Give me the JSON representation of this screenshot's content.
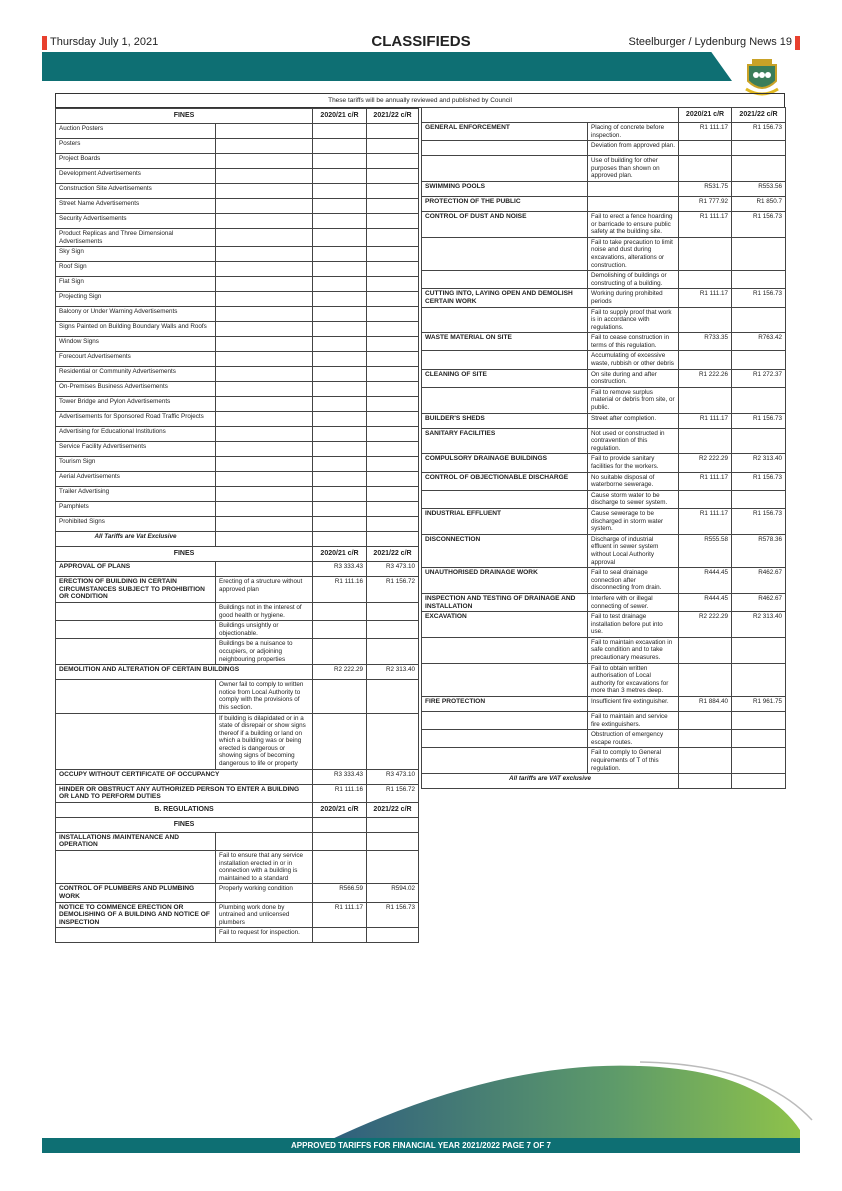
{
  "header": {
    "date": "Thursday July 1, 2021",
    "section": "CLASSIFIEDS",
    "publication": "Steelburger / Lydenburg News 19",
    "accent": "#e8402e",
    "band_color": "#0e6f73"
  },
  "note": "These tariffs will be annually reviewed and published by Council",
  "left_table": {
    "rows": [
      {
        "type": "header",
        "cells": [
          "FINES",
          "2020/21 c/R",
          "2021/22 c/R"
        ]
      },
      {
        "cells": [
          "Auction Posters",
          "",
          "",
          ""
        ]
      },
      {
        "cells": [
          "Posters",
          "",
          "",
          ""
        ]
      },
      {
        "cells": [
          "Project Boards",
          "",
          "",
          ""
        ]
      },
      {
        "cells": [
          "Development Advertisements",
          "",
          "",
          ""
        ]
      },
      {
        "cells": [
          "Construction Site Advertisements",
          "",
          "",
          ""
        ]
      },
      {
        "cells": [
          "Street Name Advertisements",
          "",
          "",
          ""
        ]
      },
      {
        "cells": [
          "Security Advertisements",
          "",
          "",
          ""
        ]
      },
      {
        "cells": [
          "Product Replicas and Three Dimensional Advertisements",
          "",
          "",
          ""
        ]
      },
      {
        "cells": [
          "Sky Sign",
          "",
          "",
          ""
        ]
      },
      {
        "cells": [
          "Roof Sign",
          "",
          "",
          ""
        ]
      },
      {
        "cells": [
          "Flat Sign",
          "",
          "",
          ""
        ]
      },
      {
        "cells": [
          "Projecting Sign",
          "",
          "",
          ""
        ]
      },
      {
        "cells": [
          "Balcony or Under Warning Advertisements",
          "",
          "",
          ""
        ]
      },
      {
        "cells": [
          "Signs Painted on Building Boundary Walls and Roofs",
          "",
          "",
          ""
        ]
      },
      {
        "cells": [
          "Window Signs",
          "",
          "",
          ""
        ]
      },
      {
        "cells": [
          "Forecourt Advertisements",
          "",
          "",
          ""
        ]
      },
      {
        "cells": [
          "Residential or Community Advertisements",
          "",
          "",
          ""
        ]
      },
      {
        "cells": [
          "On-Premises Business Advertisements",
          "",
          "",
          ""
        ]
      },
      {
        "cells": [
          "Tower Bridge and Pylon Advertisements",
          "",
          "",
          ""
        ]
      },
      {
        "cells": [
          "Advertisements for Sponsored Road Traffic Projects",
          "",
          "",
          ""
        ]
      },
      {
        "cells": [
          "Advertising for Educational Institutions",
          "",
          "",
          ""
        ]
      },
      {
        "cells": [
          "Service Facility Advertisements",
          "",
          "",
          ""
        ]
      },
      {
        "cells": [
          "Tourism Sign",
          "",
          "",
          ""
        ]
      },
      {
        "cells": [
          "Aerial Advertisements",
          "",
          "",
          ""
        ]
      },
      {
        "cells": [
          "Trailer Advertising",
          "",
          "",
          ""
        ]
      },
      {
        "cells": [
          "Pamphlets",
          "",
          "",
          ""
        ]
      },
      {
        "cells": [
          "Prohibited Signs",
          "",
          "",
          ""
        ]
      },
      {
        "type": "italic",
        "cells": [
          "All Tariffs are Vat Exclusive",
          "",
          "",
          ""
        ]
      },
      {
        "type": "header",
        "cells": [
          "FINES",
          "2020/21 c/R",
          "2021/22 c/R"
        ]
      },
      {
        "bold": true,
        "cells": [
          "APPROVAL OF PLANS",
          "",
          "R3 333.43",
          "R3 473.10"
        ]
      },
      {
        "bold": true,
        "cells": [
          "ERECTION OF BUILDING IN CERTAIN CIRCUMSTANCES SUBJECT TO PROHIBITION OR CONDITION",
          "Erecting of a structure without approved plan",
          "R1 111.16",
          "R1 156.72"
        ]
      },
      {
        "cells": [
          "",
          "Buildings not in the interest of good health or hygiene.",
          "",
          ""
        ]
      },
      {
        "cells": [
          "",
          "Buildings unsightly or objectionable.",
          "",
          ""
        ]
      },
      {
        "cells": [
          "",
          "Buildings be a nuisance to occupiers, or adjoining neighbouring properties",
          "",
          ""
        ]
      },
      {
        "type": "span",
        "bold": true,
        "cells": [
          "DEMOLITION AND ALTERATION OF CERTAIN BUILDINGS",
          "R2 222.29",
          "R2 313.40"
        ]
      },
      {
        "cells": [
          "",
          "Owner fail to comply to written notice from Local Authority to comply with the provisions of this section.",
          "",
          ""
        ]
      },
      {
        "cells": [
          "",
          "If building is dilapidated or in a state of disrepair or show signs thereof if a building or land on which a building was or being erected is dangerous or showing signs of becoming dangerous to life or property",
          "",
          ""
        ]
      },
      {
        "type": "span",
        "bold": true,
        "cells": [
          "OCCUPY WITHOUT CERTIFICATE OF OCCUPANCY",
          "R3 333.43",
          "R3 473.10"
        ]
      },
      {
        "type": "span",
        "bold": true,
        "cells": [
          "HINDER OR OBSTRUCT ANY AUTHORIZED PERSON TO ENTER A BUILDING OR LAND TO PERFORM DUTIES",
          "R1 111.16",
          "R1 156.72"
        ]
      },
      {
        "type": "header",
        "cells": [
          "B. REGULATIONS",
          "2020/21 c/R",
          "2021/22 c/R"
        ]
      },
      {
        "type": "header",
        "cells": [
          "FINES",
          "",
          ""
        ]
      },
      {
        "bold": true,
        "cells": [
          "INSTALLATIONS /MAINTENANCE AND OPERATION",
          "",
          "",
          ""
        ]
      },
      {
        "cells": [
          "",
          "Fail to ensure that any service installation erected in or in connection with a building is maintained to a standard",
          "",
          ""
        ]
      },
      {
        "bold": true,
        "cells": [
          "CONTROL OF PLUMBERS AND PLUMBING WORK",
          "Properly working condition",
          "R566.59",
          "R594.02"
        ]
      },
      {
        "bold": true,
        "cells": [
          "NOTICE TO COMMENCE ERECTION OR DEMOLISHING OF A BUILDING AND NOTICE OF INSPECTION",
          "Plumbing work done by untrained and unlicensed plumbers",
          "R1 111.17",
          "R1 156.73"
        ]
      },
      {
        "cells": [
          "",
          "Fail to request for inspection.",
          "",
          ""
        ]
      }
    ]
  },
  "right_table": {
    "rows": [
      {
        "type": "header",
        "cells": [
          "",
          "2020/21 c/R",
          "2021/22 c/R"
        ]
      },
      {
        "bold": true,
        "cells": [
          "GENERAL ENFORCEMENT",
          "Placing of concrete before inspection.",
          "R1 111.17",
          "R1 156.73"
        ]
      },
      {
        "cells": [
          "",
          "Deviation from approved plan.",
          "",
          ""
        ]
      },
      {
        "cells": [
          "",
          "Use of building for other purposes than shown on approved plan.",
          "",
          ""
        ]
      },
      {
        "bold": true,
        "cells": [
          "SWIMMING POOLS",
          "",
          "R531.75",
          "R553.56"
        ]
      },
      {
        "bold": true,
        "cells": [
          "PROTECTION OF THE PUBLIC",
          "",
          "R1 777.92",
          "R1 850.7"
        ]
      },
      {
        "bold": true,
        "cells": [
          "CONTROL OF DUST AND NOISE",
          "Fail to erect a fence hoarding or barricade to ensure public safety at the building site.",
          "R1 111.17",
          "R1 156.73"
        ]
      },
      {
        "cells": [
          "",
          "Fail to take precaution to limit noise and dust during excavations, alterations or construction.",
          "",
          ""
        ]
      },
      {
        "cells": [
          "",
          "Demolishing of buildings or constructing of a building.",
          "",
          ""
        ]
      },
      {
        "bold": true,
        "cells": [
          "CUTTING INTO, LAYING OPEN AND DEMOLISH CERTAIN WORK",
          "Working during prohibited periods",
          "R1 111.17",
          "R1 156.73"
        ]
      },
      {
        "cells": [
          "",
          "Fail to supply proof that work is in accordance with regulations.",
          "",
          ""
        ]
      },
      {
        "bold": true,
        "cells": [
          "WASTE MATERIAL ON SITE",
          "Fail to cease construction in terms of this regulation.",
          "R733.35",
          "R763.42"
        ]
      },
      {
        "cells": [
          "",
          "Accumulating of excessive waste, rubbish or other debris",
          "",
          ""
        ]
      },
      {
        "bold": true,
        "cells": [
          "CLEANING OF SITE",
          "On site during and after construction.",
          "R1 222.26",
          "R1 272.37"
        ]
      },
      {
        "cells": [
          "",
          "Fail to remove surplus material or debris from site, or public.",
          "",
          ""
        ]
      },
      {
        "bold": true,
        "cells": [
          "BUILDER'S SHEDS",
          "Street after completion.",
          "R1 111.17",
          "R1 156.73"
        ]
      },
      {
        "bold": true,
        "cells": [
          "SANITARY FACILITIES",
          "Not used or constructed in contravention of this regulation.",
          "",
          ""
        ]
      },
      {
        "bold": true,
        "cells": [
          "COMPULSORY DRAINAGE BUILDINGS",
          "Fail to provide sanitary facilities for the workers.",
          "R2 222.29",
          "R2 313.40"
        ]
      },
      {
        "bold": true,
        "cells": [
          "CONTROL OF OBJECTIONABLE DISCHARGE",
          "No suitable disposal of waterborne sewerage.",
          "R1 111.17",
          "R1 156.73"
        ]
      },
      {
        "cells": [
          "",
          "Cause storm water to be discharge to sewer system.",
          "",
          ""
        ]
      },
      {
        "bold": true,
        "cells": [
          "INDUSTRIAL EFFLUENT",
          "Cause sewerage to be discharged in storm water system.",
          "R1 111.17",
          "R1 156.73"
        ]
      },
      {
        "bold": true,
        "cells": [
          "DISCONNECTION",
          "Discharge of industrial effluent in sewer system without Local Authority approval",
          "R555.58",
          "R578.36"
        ]
      },
      {
        "bold": true,
        "cells": [
          "UNAUTHORISED DRAINAGE WORK",
          "Fail to seal drainage connection after disconnecting from drain.",
          "R444.45",
          "R462.67"
        ]
      },
      {
        "bold": true,
        "cells": [
          "INSPECTION AND TESTING OF DRAINAGE AND INSTALLATION",
          "Interfere with or illegal connecting of sewer.",
          "R444.45",
          "R462.67"
        ]
      },
      {
        "bold": true,
        "cells": [
          "EXCAVATION",
          "Fail to test drainage installation before put into use.",
          "R2 222.29",
          "R2 313.40"
        ]
      },
      {
        "cells": [
          "",
          "Fail to maintain excavation in safe condition and to take precautionary measures.",
          "",
          ""
        ]
      },
      {
        "cells": [
          "",
          "Fail to obtain written authorisation of Local authority for excavations for more than 3 metres deep.",
          "",
          ""
        ]
      },
      {
        "bold": true,
        "cells": [
          "FIRE PROTECTION",
          "Insufficient fire extinguisher.",
          "R1 884.40",
          "R1 961.75"
        ]
      },
      {
        "cells": [
          "",
          "Fail to maintain and service fire extinguishers.",
          "",
          ""
        ]
      },
      {
        "cells": [
          "",
          "Obstruction of emergency escape routes.",
          "",
          ""
        ]
      },
      {
        "cells": [
          "",
          "Fail to comply to General requirements of T of this regulation.",
          "",
          ""
        ]
      },
      {
        "type": "vatnote",
        "cells": [
          "All tariffs are VAT exclusive",
          "",
          ""
        ]
      }
    ]
  },
  "footer": {
    "text": "APPROVED TARIFFS FOR FINANCIAL YEAR 2021/2022   PAGE 7 OF 7"
  }
}
